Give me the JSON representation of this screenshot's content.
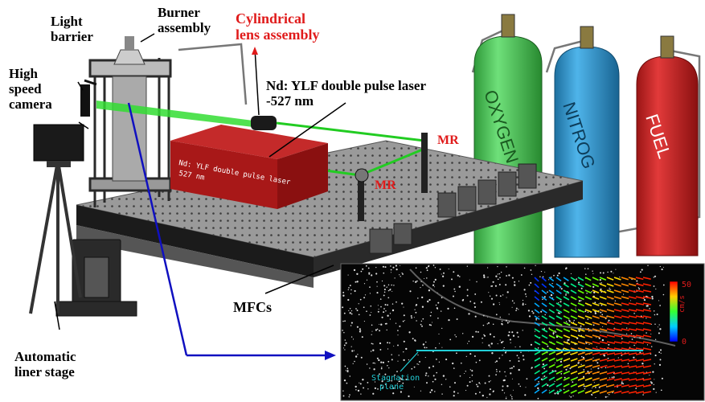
{
  "labels": {
    "light_barrier": [
      "Light",
      "barrier"
    ],
    "high_speed_camera": [
      "High",
      "speed",
      "camera"
    ],
    "burner_assembly": [
      "Burner",
      "assembly"
    ],
    "cylindrical_lens": [
      "Cylindrical",
      "lens assembly"
    ],
    "laser": [
      "Nd: YLF double pulse laser",
      "-527 nm"
    ],
    "mr_top": "MR",
    "mr_bottom": "MR",
    "mfcs": "MFCs",
    "linear_stage": [
      "Automatic",
      "liner stage"
    ]
  },
  "laser_box_text": [
    "Nd: YLF double pulse laser",
    "527 nm"
  ],
  "cylinders": [
    "OXYGEN",
    "NITROG",
    "FUEL"
  ],
  "inset": {
    "colorbar_max": "50",
    "colorbar_min": "0",
    "colorbar_unit": "cm/s",
    "stagnation_label": [
      "Stagnation",
      "plane"
    ]
  },
  "colors": {
    "oxygen": "#3fbf4a",
    "nitrogen": "#2a8fc7",
    "fuel": "#c81e1e",
    "laser_box": "#a81818",
    "beam": "#33dd33",
    "pointer": "#1010c0",
    "label_red": "#e01b1b"
  }
}
